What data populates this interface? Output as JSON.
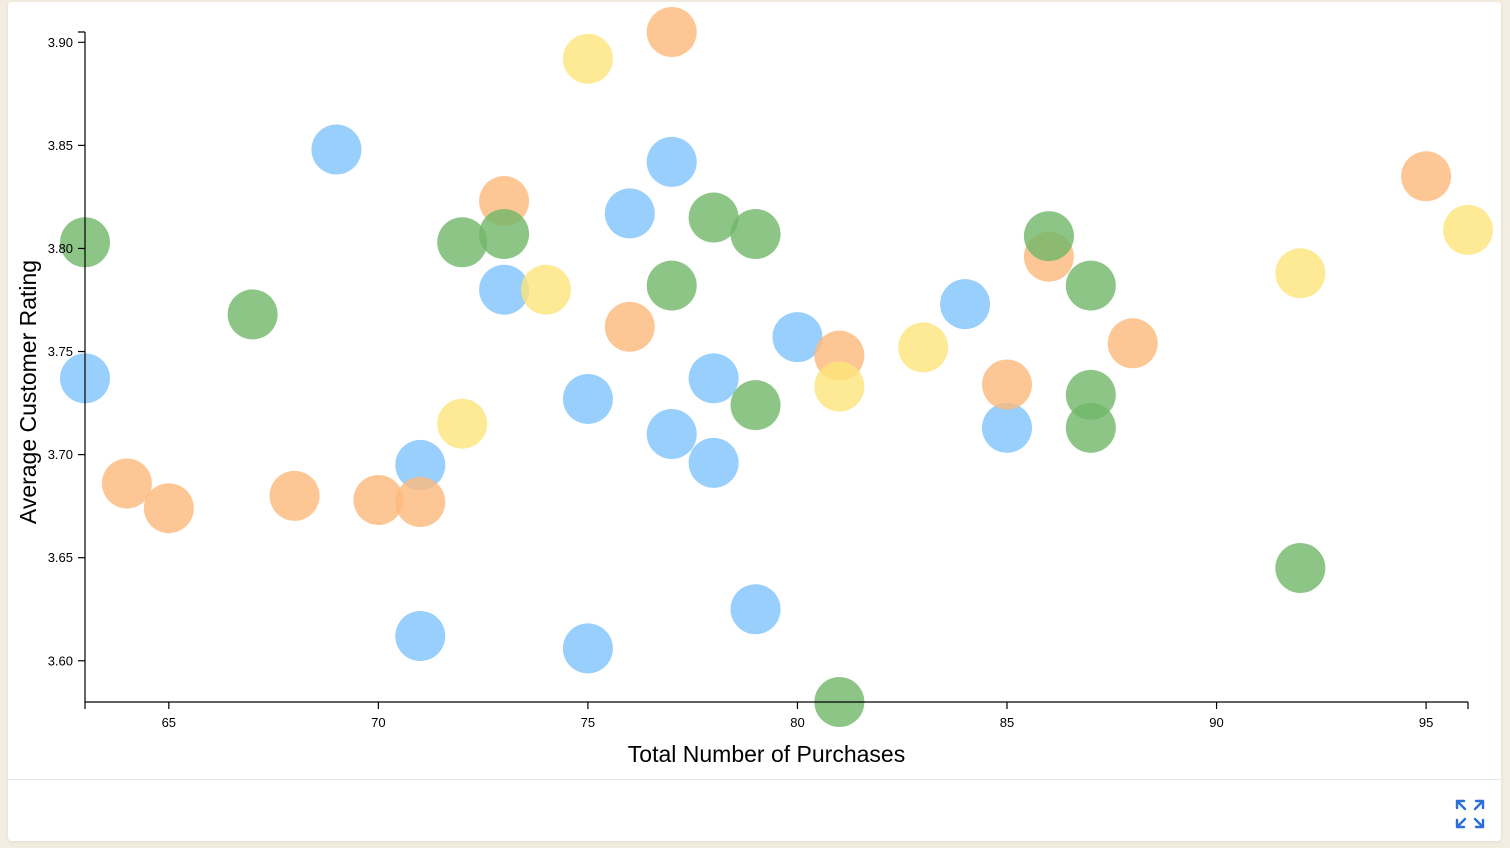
{
  "chart_data": {
    "type": "scatter",
    "title": "",
    "xlabel": "Total Number of Purchases",
    "ylabel": "Average Customer Rating",
    "xlim": [
      63,
      96
    ],
    "ylim": [
      3.58,
      3.905
    ],
    "x_ticks": [
      65,
      70,
      75,
      80,
      85,
      90,
      95
    ],
    "y_ticks": [
      3.6,
      3.65,
      3.7,
      3.75,
      3.8,
      3.85,
      3.9
    ],
    "y_tick_labels": [
      "3.60",
      "3.65",
      "3.70",
      "3.75",
      "3.80",
      "3.85",
      "3.90"
    ],
    "grid": false,
    "legend": "none",
    "series": [
      {
        "color": "#7fc3fb",
        "points": [
          {
            "x": 63,
            "y": 3.737
          },
          {
            "x": 69,
            "y": 3.848
          },
          {
            "x": 71,
            "y": 3.695
          },
          {
            "x": 71,
            "y": 3.612
          },
          {
            "x": 73,
            "y": 3.78
          },
          {
            "x": 75,
            "y": 3.727
          },
          {
            "x": 75,
            "y": 3.606
          },
          {
            "x": 76,
            "y": 3.817
          },
          {
            "x": 77,
            "y": 3.842
          },
          {
            "x": 77,
            "y": 3.71
          },
          {
            "x": 78,
            "y": 3.737
          },
          {
            "x": 78,
            "y": 3.696
          },
          {
            "x": 79,
            "y": 3.625
          },
          {
            "x": 80,
            "y": 3.757
          },
          {
            "x": 84,
            "y": 3.773
          },
          {
            "x": 85,
            "y": 3.713
          }
        ]
      },
      {
        "color": "#fdb97a",
        "points": [
          {
            "x": 64,
            "y": 3.686
          },
          {
            "x": 65,
            "y": 3.674
          },
          {
            "x": 68,
            "y": 3.68
          },
          {
            "x": 70,
            "y": 3.678
          },
          {
            "x": 71,
            "y": 3.677
          },
          {
            "x": 73,
            "y": 3.823
          },
          {
            "x": 76,
            "y": 3.762
          },
          {
            "x": 77,
            "y": 3.905
          },
          {
            "x": 81,
            "y": 3.748
          },
          {
            "x": 85,
            "y": 3.734
          },
          {
            "x": 86,
            "y": 3.796
          },
          {
            "x": 88,
            "y": 3.754
          },
          {
            "x": 95,
            "y": 3.835
          }
        ]
      },
      {
        "color": "#fee57a",
        "points": [
          {
            "x": 72,
            "y": 3.715
          },
          {
            "x": 74,
            "y": 3.78
          },
          {
            "x": 75,
            "y": 3.892
          },
          {
            "x": 81,
            "y": 3.733
          },
          {
            "x": 83,
            "y": 3.752
          },
          {
            "x": 92,
            "y": 3.788
          },
          {
            "x": 96,
            "y": 3.809
          }
        ]
      },
      {
        "color": "#6fb668",
        "points": [
          {
            "x": 63,
            "y": 3.803
          },
          {
            "x": 67,
            "y": 3.768
          },
          {
            "x": 72,
            "y": 3.803
          },
          {
            "x": 73,
            "y": 3.807
          },
          {
            "x": 77,
            "y": 3.782
          },
          {
            "x": 78,
            "y": 3.815
          },
          {
            "x": 79,
            "y": 3.807
          },
          {
            "x": 79,
            "y": 3.724
          },
          {
            "x": 81,
            "y": 3.58
          },
          {
            "x": 86,
            "y": 3.806
          },
          {
            "x": 87,
            "y": 3.782
          },
          {
            "x": 87,
            "y": 3.729
          },
          {
            "x": 87,
            "y": 3.713
          },
          {
            "x": 92,
            "y": 3.645
          }
        ]
      }
    ]
  },
  "footer": {
    "expand_icon": "expand-arrows-icon",
    "icon_color": "#2a6fdb"
  }
}
